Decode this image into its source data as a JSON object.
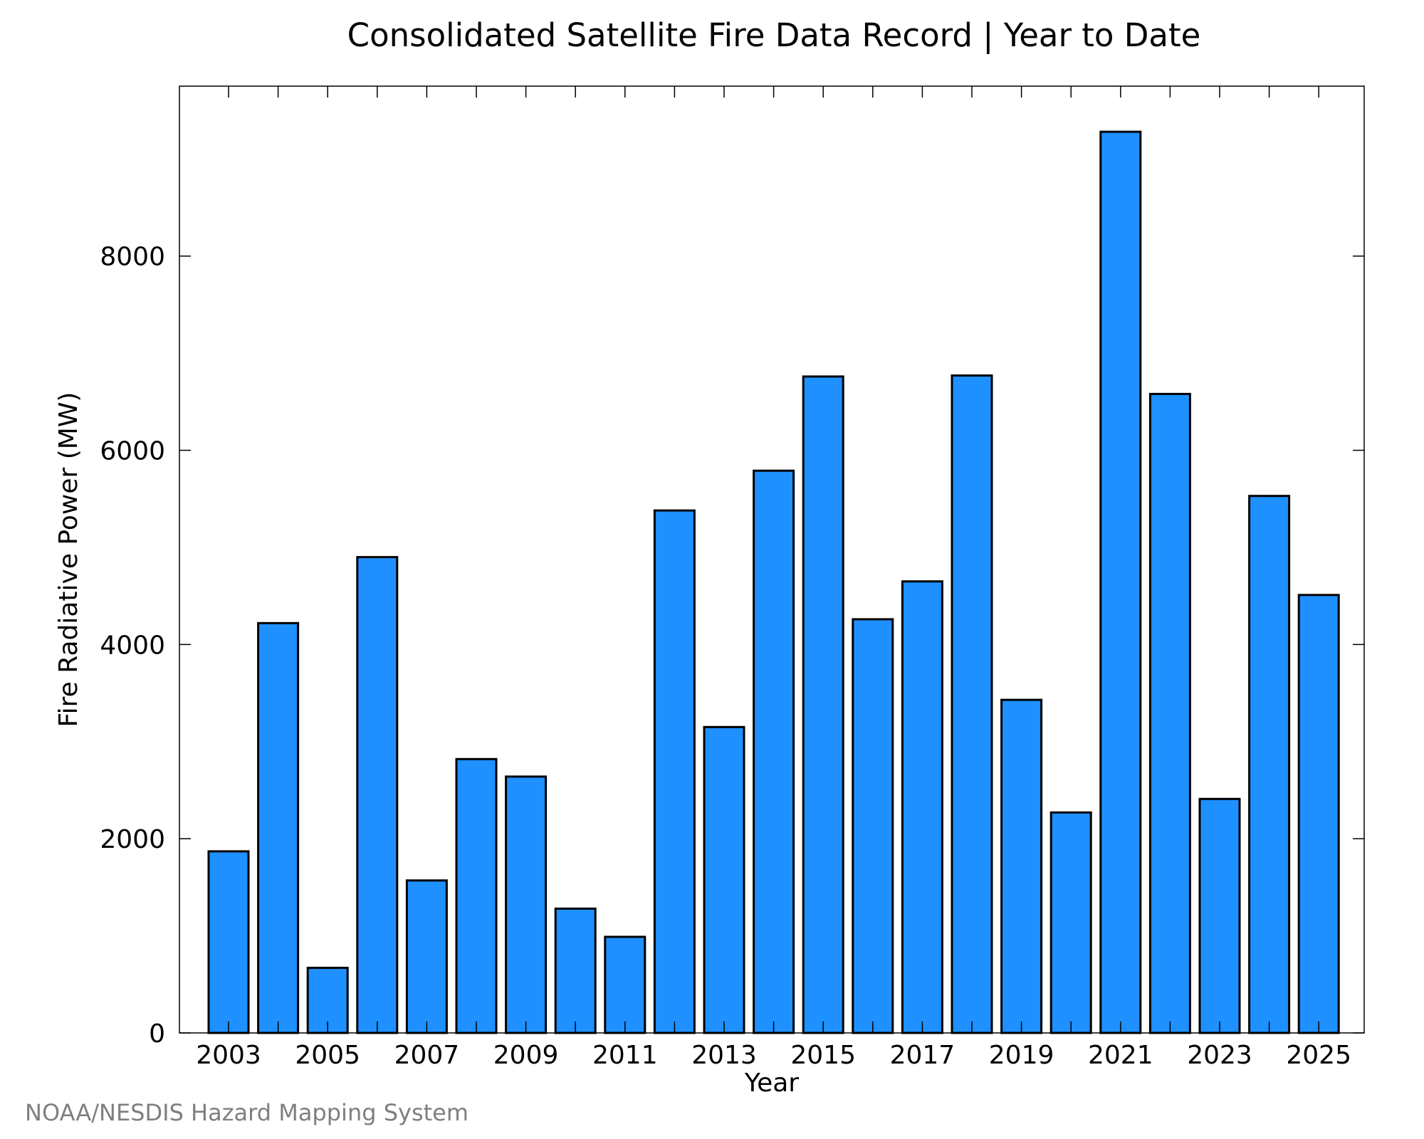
{
  "chart_data": {
    "type": "bar",
    "title": "Consolidated Satellite Fire Data Record | Year to Date",
    "xlabel": "Year",
    "ylabel": "Fire Radiative Power (MW)",
    "categories": [
      "2003",
      "2004",
      "2005",
      "2006",
      "2007",
      "2008",
      "2009",
      "2010",
      "2011",
      "2012",
      "2013",
      "2014",
      "2015",
      "2016",
      "2017",
      "2018",
      "2019",
      "2020",
      "2021",
      "2022",
      "2023",
      "2024",
      "2025"
    ],
    "values": [
      1870,
      4220,
      670,
      4900,
      1570,
      2820,
      2640,
      1280,
      990,
      5380,
      3150,
      5790,
      6760,
      4260,
      4650,
      6770,
      3430,
      2270,
      9280,
      6580,
      2410,
      5530,
      4510
    ],
    "x_tick_labels": [
      "2003",
      "2005",
      "2007",
      "2009",
      "2011",
      "2013",
      "2015",
      "2017",
      "2019",
      "2021",
      "2023",
      "2025"
    ],
    "y_ticks": [
      0,
      2000,
      4000,
      6000,
      8000
    ],
    "ylim": [
      0,
      9750
    ],
    "grid": false,
    "bar_color": "#1e90ff",
    "bar_edge_color": "#000000",
    "source_credit": "NOAA/NESDIS Hazard Mapping System"
  }
}
